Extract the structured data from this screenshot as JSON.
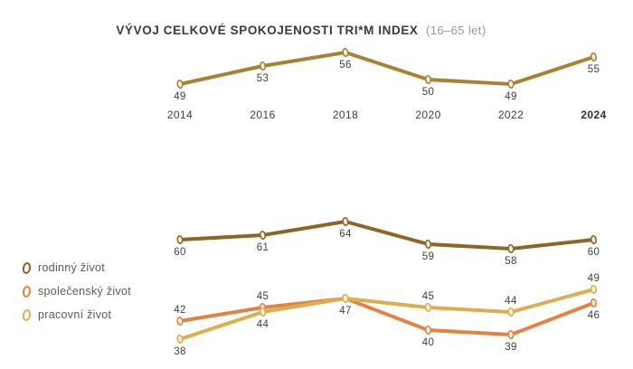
{
  "title": {
    "main": "VÝVOJ CELKOVÉ SPOKOJENOSTI TRI*M INDEX",
    "subtitle": "(16–65 let)"
  },
  "colors": {
    "index": "#a98134",
    "rodinny": "#8c6527",
    "spolecensky": "#e08443",
    "pracovni": "#ddae51",
    "value_label": "#3e3e42",
    "year_label": "#3e3e42",
    "year_label_bold": "#2e2e30",
    "title_text": "#3a3a3c",
    "subtitle_text": "#98989c",
    "legend_text": "#5b5b5e",
    "marker_fill": "#fbf5ea"
  },
  "legend": {
    "position": "middle-left",
    "items": [
      {
        "id": "rodinny-zivot",
        "label": "rodinný život",
        "color_key": "rodinny"
      },
      {
        "id": "spolecensky-zivot",
        "label": "společenský život",
        "color_key": "spolecensky"
      },
      {
        "id": "pracovni-zivot",
        "label": "pracovní život",
        "color_key": "pracovni"
      }
    ]
  },
  "chart_data": [
    {
      "type": "line",
      "title": "VÝVOJ CELKOVÉ SPOKOJENOSTI TRI*M INDEX (16–65 let)",
      "x": [
        2014,
        2016,
        2018,
        2020,
        2022,
        2024
      ],
      "bold_x": [
        2024
      ],
      "show_x_labels": true,
      "grid": false,
      "y_axis_visible": false,
      "ylim": [
        47,
        58
      ],
      "series": [
        {
          "id": "trim-index",
          "name": "TRI*M Index",
          "color_key": "index",
          "values": [
            49,
            53,
            56,
            50,
            49,
            55
          ],
          "label_side": [
            "below",
            "below",
            "below",
            "below",
            "below",
            "below"
          ]
        }
      ]
    },
    {
      "type": "line",
      "title": "",
      "x": [
        2014,
        2016,
        2018,
        2020,
        2022,
        2024
      ],
      "show_x_labels": false,
      "grid": false,
      "y_axis_visible": false,
      "ylim": [
        36,
        66
      ],
      "series": [
        {
          "id": "rodinny-zivot",
          "name": "rodinný život",
          "color_key": "rodinny",
          "values": [
            60,
            61,
            64,
            59,
            58,
            60
          ],
          "label_side": [
            "below",
            "below",
            "below",
            "below",
            "below",
            "below"
          ]
        },
        {
          "id": "spolecensky-zivot",
          "name": "společenský život",
          "color_key": "spolecensky",
          "values": [
            42,
            45,
            47,
            40,
            39,
            46
          ],
          "label_side": [
            "above",
            "above",
            "below",
            "below",
            "below",
            "below"
          ]
        },
        {
          "id": "pracovni-zivot",
          "name": "pracovní život",
          "color_key": "pracovni",
          "values": [
            38,
            44,
            47,
            45,
            44,
            49
          ],
          "label_side": [
            "below",
            "below",
            "none",
            "above",
            "above",
            "above"
          ]
        }
      ]
    }
  ]
}
